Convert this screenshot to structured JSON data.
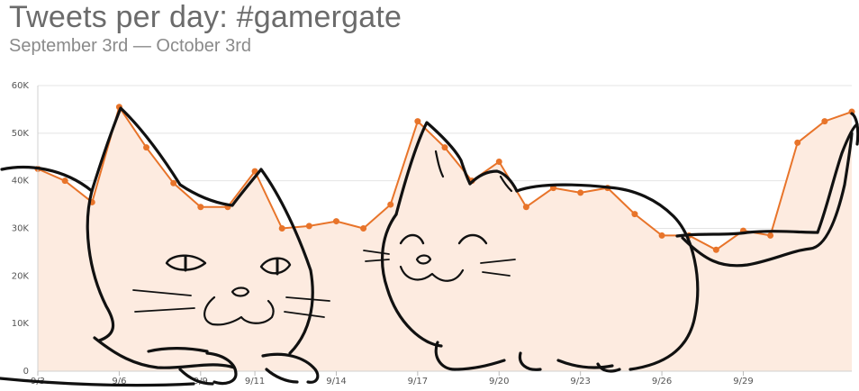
{
  "header": {
    "title": "Tweets per day: #gamergate",
    "subtitle": "September 3rd — October 3rd"
  },
  "colors": {
    "line": "#e8742a",
    "area": "#fdebe0",
    "sketch": "#111111"
  },
  "chart_data": {
    "type": "area",
    "title": "Tweets per day: #gamergate",
    "subtitle": "September 3rd — October 3rd",
    "xlabel": "",
    "ylabel": "",
    "x": [
      "9/3",
      "9/4",
      "9/5",
      "9/6",
      "9/7",
      "9/8",
      "9/9",
      "9/10",
      "9/11",
      "9/12",
      "9/13",
      "9/14",
      "9/15",
      "9/16",
      "9/17",
      "9/18",
      "9/19",
      "9/20",
      "9/21",
      "9/22",
      "9/23",
      "9/24",
      "9/25",
      "9/26",
      "9/27",
      "9/28",
      "9/29",
      "9/30",
      "10/1",
      "10/2",
      "10/3"
    ],
    "values": [
      42500,
      40000,
      35500,
      55500,
      47000,
      39500,
      34500,
      34500,
      42000,
      30000,
      30500,
      31500,
      30000,
      35000,
      52500,
      47000,
      40000,
      44000,
      34500,
      38500,
      37500,
      38500,
      33000,
      28500,
      28500,
      25500,
      29500,
      28500,
      48000,
      52500,
      54500
    ],
    "xticks": [
      "9/3",
      "9/6",
      "9/9",
      "9/11",
      "9/14",
      "9/17",
      "9/20",
      "9/23",
      "9/26",
      "9/29"
    ],
    "yticks": [
      "0",
      "10K",
      "20K",
      "30K",
      "40K",
      "50K",
      "60K"
    ],
    "ylim": [
      0,
      60000
    ],
    "grid": true,
    "legend": "none"
  }
}
